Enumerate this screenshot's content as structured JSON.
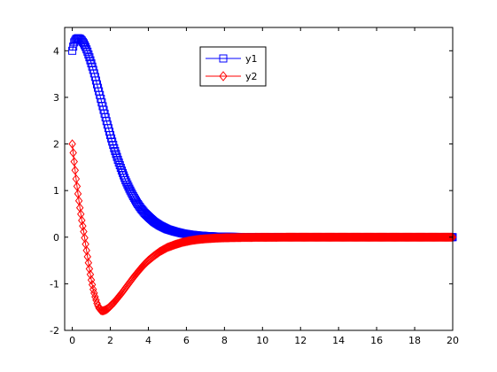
{
  "chart_data": {
    "type": "line",
    "title": "",
    "xlabel": "",
    "ylabel": "",
    "xlim": [
      -0.4,
      20
    ],
    "ylim": [
      -2,
      4.5
    ],
    "xticks": [
      0,
      2,
      4,
      6,
      8,
      10,
      12,
      14,
      16,
      18,
      20
    ],
    "yticks": [
      -2,
      -1,
      0,
      1,
      2,
      3,
      4
    ],
    "xtick_labels": [
      "0",
      "2",
      "4",
      "6",
      "8",
      "10",
      "12",
      "14",
      "16",
      "18",
      "20"
    ],
    "ytick_labels": [
      "-2",
      "-1",
      "0",
      "1",
      "2",
      "3",
      "4"
    ],
    "grid": false,
    "legend_position": "top-center",
    "series": [
      {
        "name": "y1",
        "color": "#0000ff",
        "marker": "square",
        "x": [
          0,
          0.1,
          0.2,
          0.3,
          0.4,
          0.5,
          0.6,
          0.7,
          0.8,
          0.9,
          1.0,
          1.1,
          1.2,
          1.3,
          1.4,
          1.5,
          1.6,
          1.7,
          1.8,
          1.9,
          2.0,
          2.2,
          2.4,
          2.6,
          2.8,
          3.0,
          3.2,
          3.4,
          3.6,
          3.8,
          4.0,
          4.3,
          4.6,
          5.0,
          5.4,
          5.8,
          6.2,
          6.6,
          7.0,
          7.5,
          8.0,
          9.0,
          10.0,
          12.0,
          14.0,
          16.0,
          18.0,
          20.0
        ],
        "values": [
          4.0,
          4.18,
          4.25,
          4.27,
          4.26,
          4.22,
          4.16,
          4.08,
          3.98,
          3.86,
          3.73,
          3.59,
          3.44,
          3.28,
          3.13,
          2.97,
          2.81,
          2.65,
          2.49,
          2.34,
          2.19,
          1.91,
          1.66,
          1.43,
          1.22,
          1.04,
          0.88,
          0.74,
          0.62,
          0.52,
          0.44,
          0.33,
          0.25,
          0.17,
          0.12,
          0.08,
          0.055,
          0.037,
          0.025,
          0.015,
          0.009,
          0.004,
          0.002,
          0.0,
          0.0,
          0.0,
          0.0,
          0.0
        ]
      },
      {
        "name": "y2",
        "color": "#ff0000",
        "marker": "diamond",
        "x": [
          0,
          0.1,
          0.2,
          0.3,
          0.4,
          0.5,
          0.6,
          0.7,
          0.8,
          0.9,
          1.0,
          1.1,
          1.2,
          1.3,
          1.4,
          1.5,
          1.6,
          1.7,
          1.8,
          1.9,
          2.0,
          2.2,
          2.4,
          2.6,
          2.8,
          3.0,
          3.2,
          3.4,
          3.6,
          3.8,
          4.0,
          4.3,
          4.6,
          5.0,
          5.4,
          5.8,
          6.2,
          6.6,
          7.0,
          7.5,
          8.0,
          9.0,
          10.0,
          12.0,
          14.0,
          16.0,
          18.0,
          20.0
        ],
        "values": [
          2.0,
          1.62,
          1.25,
          0.93,
          0.63,
          0.36,
          0.12,
          -0.15,
          -0.42,
          -0.68,
          -0.92,
          -1.12,
          -1.28,
          -1.42,
          -1.52,
          -1.57,
          -1.58,
          -1.57,
          -1.55,
          -1.52,
          -1.48,
          -1.4,
          -1.3,
          -1.2,
          -1.09,
          -0.98,
          -0.87,
          -0.77,
          -0.67,
          -0.58,
          -0.5,
          -0.4,
          -0.31,
          -0.22,
          -0.16,
          -0.11,
          -0.075,
          -0.05,
          -0.035,
          -0.022,
          -0.014,
          -0.006,
          -0.003,
          -0.001,
          0.0,
          0.0,
          0.0,
          0.0
        ]
      }
    ]
  }
}
